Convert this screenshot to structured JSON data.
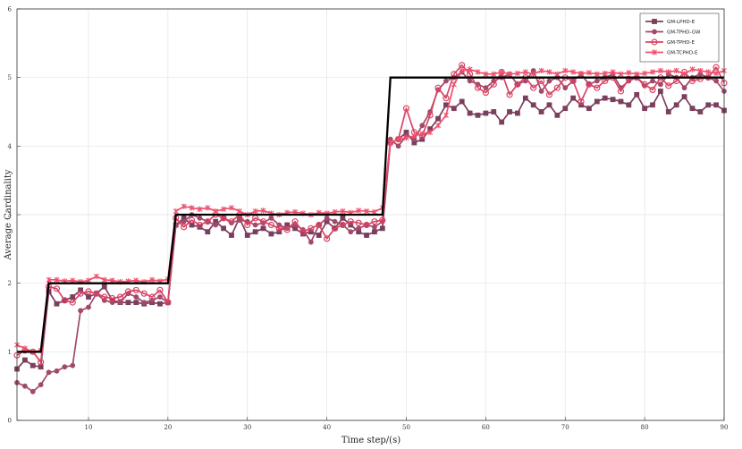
{
  "chart_data": {
    "type": "line",
    "title": "",
    "xlabel": "Time step/(s)",
    "ylabel": "Average Cardinality",
    "xlim": [
      1,
      90
    ],
    "ylim": [
      0,
      6
    ],
    "xticks": [
      10,
      20,
      30,
      40,
      50,
      60,
      70,
      80,
      90
    ],
    "yticks": [
      0,
      1,
      2,
      3,
      4,
      5,
      6
    ],
    "grid": true,
    "legend_position": "top-right",
    "x": [
      1,
      2,
      3,
      4,
      5,
      6,
      7,
      8,
      9,
      10,
      11,
      12,
      13,
      14,
      15,
      16,
      17,
      18,
      19,
      20,
      21,
      22,
      23,
      24,
      25,
      26,
      27,
      28,
      29,
      30,
      31,
      32,
      33,
      34,
      35,
      36,
      37,
      38,
      39,
      40,
      41,
      42,
      43,
      44,
      45,
      46,
      47,
      48,
      49,
      50,
      51,
      52,
      53,
      54,
      55,
      56,
      57,
      58,
      59,
      60,
      61,
      62,
      63,
      64,
      65,
      66,
      67,
      68,
      69,
      70,
      71,
      72,
      73,
      74,
      75,
      76,
      77,
      78,
      79,
      80,
      81,
      82,
      83,
      84,
      85,
      86,
      87,
      88,
      89,
      90
    ],
    "truth": {
      "color": "#000000",
      "values": [
        1,
        1,
        1,
        1,
        2,
        2,
        2,
        2,
        2,
        2,
        2,
        2,
        2,
        2,
        2,
        2,
        2,
        2,
        2,
        2,
        3,
        3,
        3,
        3,
        3,
        3,
        3,
        3,
        3,
        3,
        3,
        3,
        3,
        3,
        3,
        3,
        3,
        3,
        3,
        3,
        3,
        3,
        3,
        3,
        3,
        3,
        3,
        5,
        5,
        5,
        5,
        5,
        5,
        5,
        5,
        5,
        5,
        5,
        5,
        5,
        5,
        5,
        5,
        5,
        5,
        5,
        5,
        5,
        5,
        5,
        5,
        5,
        5,
        5,
        5,
        5,
        5,
        5,
        5,
        5,
        5,
        5,
        5,
        5,
        5,
        5,
        5,
        5,
        5,
        5
      ]
    },
    "series": [
      {
        "name": "GM-LPHD-E",
        "color": "#7b3f5e",
        "marker": "square",
        "values": [
          0.75,
          0.88,
          0.8,
          0.78,
          1.88,
          1.7,
          1.75,
          1.8,
          1.9,
          1.8,
          1.85,
          1.95,
          1.75,
          1.72,
          1.72,
          1.72,
          1.7,
          1.72,
          1.7,
          1.72,
          2.85,
          2.95,
          2.85,
          2.82,
          2.75,
          2.9,
          2.8,
          2.7,
          2.95,
          2.7,
          2.75,
          2.8,
          2.72,
          2.75,
          2.85,
          2.8,
          2.72,
          2.75,
          2.7,
          2.9,
          2.8,
          2.95,
          2.85,
          2.75,
          2.7,
          2.75,
          2.8,
          4.05,
          4.1,
          4.2,
          4.05,
          4.1,
          4.25,
          4.4,
          4.6,
          4.55,
          4.65,
          4.48,
          4.45,
          4.48,
          4.5,
          4.35,
          4.5,
          4.48,
          4.7,
          4.6,
          4.5,
          4.6,
          4.45,
          4.55,
          4.7,
          4.6,
          4.55,
          4.65,
          4.7,
          4.68,
          4.65,
          4.6,
          4.75,
          4.55,
          4.6,
          4.8,
          4.5,
          4.6,
          4.72,
          4.55,
          4.5,
          4.6,
          4.6,
          4.52
        ]
      },
      {
        "name": "GM-TPHD-GW",
        "color": "#a04a6a",
        "marker": "circle-filled",
        "values": [
          0.55,
          0.5,
          0.42,
          0.52,
          0.7,
          0.72,
          0.78,
          0.8,
          1.6,
          1.65,
          1.85,
          1.75,
          1.72,
          1.72,
          1.85,
          1.8,
          1.72,
          1.75,
          1.8,
          1.72,
          2.85,
          2.9,
          3.0,
          2.95,
          2.9,
          2.85,
          2.95,
          2.88,
          2.92,
          2.9,
          2.85,
          2.88,
          2.95,
          2.85,
          2.8,
          2.85,
          2.78,
          2.6,
          2.85,
          2.95,
          2.9,
          2.85,
          2.75,
          2.8,
          2.85,
          2.82,
          2.9,
          4.1,
          4.0,
          4.15,
          4.1,
          4.3,
          4.5,
          4.82,
          4.95,
          5.0,
          5.08,
          4.95,
          4.9,
          4.85,
          4.95,
          5.0,
          5.05,
          4.9,
          4.95,
          5.1,
          4.8,
          4.95,
          5.0,
          4.85,
          4.95,
          5.05,
          4.9,
          4.95,
          5.0,
          5.05,
          4.85,
          4.95,
          5.0,
          4.88,
          4.95,
          4.9,
          5.05,
          5.0,
          4.85,
          5.0,
          5.05,
          5.0,
          4.95,
          4.8
        ]
      },
      {
        "name": "GM-TPHD-E",
        "color": "#d94466",
        "marker": "circle-open",
        "values": [
          0.95,
          1.02,
          1.0,
          0.85,
          1.95,
          1.92,
          1.75,
          1.72,
          1.85,
          1.88,
          1.85,
          1.8,
          1.78,
          1.8,
          1.88,
          1.9,
          1.85,
          1.8,
          1.9,
          1.72,
          2.95,
          2.82,
          2.92,
          2.85,
          2.9,
          3.0,
          2.95,
          2.9,
          3.0,
          2.85,
          2.95,
          2.9,
          2.85,
          2.8,
          2.78,
          2.9,
          2.75,
          2.8,
          2.85,
          2.65,
          2.8,
          2.85,
          2.9,
          2.88,
          2.85,
          2.9,
          2.92,
          4.05,
          4.1,
          4.55,
          4.2,
          4.15,
          4.45,
          4.85,
          4.7,
          5.05,
          5.18,
          5.05,
          4.85,
          4.78,
          4.9,
          5.08,
          4.75,
          4.9,
          5.0,
          4.85,
          4.95,
          4.75,
          4.85,
          5.0,
          4.95,
          4.65,
          4.9,
          4.85,
          4.95,
          5.0,
          4.8,
          4.98,
          5.0,
          4.9,
          4.82,
          5.0,
          4.88,
          4.95,
          5.08,
          4.95,
          4.98,
          5.0,
          5.15,
          4.92
        ]
      },
      {
        "name": "GM-TCPHD-E",
        "color": "#f0506e",
        "marker": "cross",
        "values": [
          1.1,
          1.05,
          1.0,
          1.02,
          2.05,
          2.05,
          2.03,
          2.04,
          2.02,
          2.04,
          2.1,
          2.05,
          2.04,
          2.02,
          2.03,
          2.04,
          2.02,
          2.05,
          2.03,
          2.06,
          3.05,
          3.12,
          3.1,
          3.08,
          3.1,
          3.05,
          3.08,
          3.1,
          3.05,
          3.0,
          3.05,
          3.06,
          3.02,
          3.0,
          3.03,
          3.04,
          3.02,
          3.0,
          3.03,
          3.02,
          3.04,
          3.05,
          3.03,
          3.06,
          3.05,
          3.04,
          3.1,
          4.05,
          4.1,
          4.12,
          4.15,
          4.18,
          4.2,
          4.3,
          4.45,
          4.9,
          5.1,
          5.12,
          5.08,
          5.05,
          5.05,
          5.08,
          5.05,
          5.06,
          5.08,
          5.05,
          5.1,
          5.08,
          5.05,
          5.1,
          5.08,
          5.06,
          5.07,
          5.05,
          5.06,
          5.08,
          5.05,
          5.07,
          5.05,
          5.06,
          5.08,
          5.1,
          5.08,
          5.1,
          5.05,
          5.12,
          5.1,
          5.08,
          5.06,
          5.1
        ]
      }
    ]
  }
}
